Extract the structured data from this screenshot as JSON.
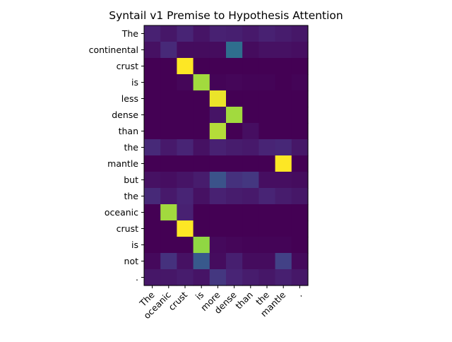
{
  "chart_data": {
    "type": "heatmap",
    "title": "Syntail v1 Premise to Hypothesis Attention",
    "xlabel": "",
    "ylabel": "",
    "colormap": "viridis",
    "value_range": [
      0,
      1
    ],
    "x_categories": [
      "The",
      "oceanic",
      "crust",
      "is",
      "more",
      "dense",
      "than",
      "the",
      "mantle",
      "."
    ],
    "y_categories": [
      "The",
      "continental",
      "crust",
      "is",
      "less",
      "dense",
      "than",
      "the",
      "mantle",
      "but",
      "the",
      "oceanic",
      "crust",
      "is",
      "not",
      "."
    ],
    "values": [
      [
        0.12,
        0.08,
        0.13,
        0.07,
        0.12,
        0.11,
        0.09,
        0.12,
        0.1,
        0.08
      ],
      [
        0.06,
        0.15,
        0.04,
        0.04,
        0.04,
        0.45,
        0.04,
        0.06,
        0.06,
        0.05
      ],
      [
        0.0,
        0.0,
        1.0,
        0.0,
        0.0,
        0.0,
        0.0,
        0.0,
        0.0,
        0.0
      ],
      [
        0.0,
        0.0,
        0.02,
        0.9,
        0.01,
        0.02,
        0.01,
        0.01,
        0.0,
        0.01
      ],
      [
        0.0,
        0.0,
        0.0,
        0.0,
        0.98,
        0.0,
        0.0,
        0.0,
        0.0,
        0.0
      ],
      [
        0.0,
        0.0,
        0.0,
        0.0,
        0.07,
        0.9,
        0.0,
        0.0,
        0.0,
        0.0
      ],
      [
        0.0,
        0.0,
        0.0,
        0.0,
        0.92,
        0.0,
        0.05,
        0.0,
        0.0,
        0.0
      ],
      [
        0.15,
        0.09,
        0.13,
        0.06,
        0.12,
        0.1,
        0.09,
        0.13,
        0.14,
        0.08
      ],
      [
        0.0,
        0.0,
        0.0,
        0.0,
        0.0,
        0.0,
        0.0,
        0.0,
        1.0,
        0.0
      ],
      [
        0.06,
        0.05,
        0.07,
        0.1,
        0.32,
        0.18,
        0.2,
        0.05,
        0.05,
        0.04
      ],
      [
        0.15,
        0.09,
        0.13,
        0.06,
        0.12,
        0.1,
        0.09,
        0.13,
        0.1,
        0.08
      ],
      [
        0.0,
        0.9,
        0.12,
        0.0,
        0.0,
        0.0,
        0.0,
        0.0,
        0.0,
        0.0
      ],
      [
        0.0,
        0.0,
        1.0,
        0.0,
        0.0,
        0.0,
        0.0,
        0.0,
        0.0,
        0.0
      ],
      [
        0.0,
        0.0,
        0.0,
        0.88,
        0.03,
        0.02,
        0.01,
        0.01,
        0.01,
        0.0
      ],
      [
        0.03,
        0.18,
        0.06,
        0.35,
        0.04,
        0.11,
        0.04,
        0.04,
        0.24,
        0.03
      ],
      [
        0.08,
        0.08,
        0.1,
        0.07,
        0.2,
        0.13,
        0.1,
        0.08,
        0.11,
        0.08
      ]
    ]
  }
}
